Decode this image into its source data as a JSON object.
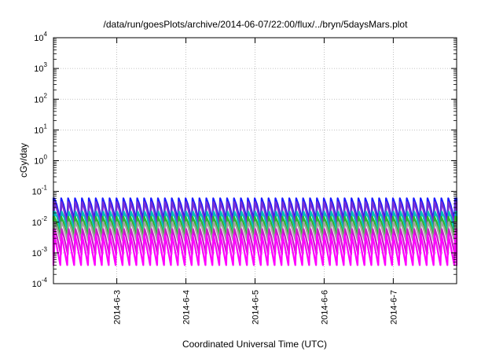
{
  "chart_data": {
    "type": "line",
    "title": "/data/run/goesPlots/archive/2014-06-07/22:00/flux/../bryn/5daysMars.plot",
    "xlabel": "Coordinated Universal Time (UTC)",
    "ylabel": "cGy/day",
    "yscale": "log",
    "ylim": [
      0.0001,
      10000
    ],
    "y_ticks": [
      {
        "base": "10",
        "exp": "-4"
      },
      {
        "base": "10",
        "exp": "-3"
      },
      {
        "base": "10",
        "exp": "-2"
      },
      {
        "base": "10",
        "exp": "-1"
      },
      {
        "base": "10",
        "exp": "0"
      },
      {
        "base": "10",
        "exp": "1"
      },
      {
        "base": "10",
        "exp": "2"
      },
      {
        "base": "10",
        "exp": "3"
      },
      {
        "base": "10",
        "exp": "4"
      }
    ],
    "xlim": [
      "2014-06-02 02:00",
      "2014-06-07 22:00"
    ],
    "x_ticks": [
      "2014-6-3",
      "2014-6-4",
      "2014-6-5",
      "2014-6-6",
      "2014-6-7"
    ],
    "grid": true,
    "oscillation_period_hours": 2.4,
    "series": [
      {
        "color": "#1a1aff",
        "peak": 0.06,
        "trough": 0.012
      },
      {
        "color": "#7a2fd0",
        "peak": 0.045,
        "trough": 0.008
      },
      {
        "color": "#00bcbc",
        "peak": 0.022,
        "trough": 0.005
      },
      {
        "color": "#2bb52b",
        "peak": 0.015,
        "trough": 0.0035
      },
      {
        "color": "#a0a0a0",
        "peak": 0.01,
        "trough": 0.0025
      },
      {
        "color": "#c81ec8",
        "peak": 0.006,
        "trough": 0.0009
      },
      {
        "color": "#ff00ff",
        "peak": 0.004,
        "trough": 0.0004
      }
    ]
  }
}
